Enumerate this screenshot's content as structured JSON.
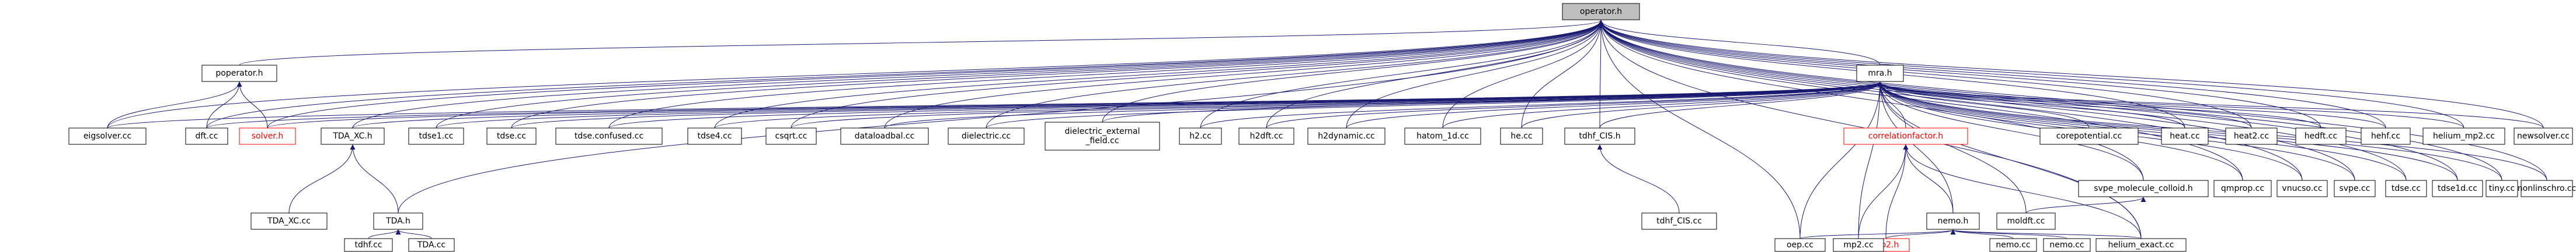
{
  "diagram": {
    "title": "",
    "edge_color": "#191970",
    "focus_fill": "#bfbfbf",
    "red_color": "#ff0000",
    "nodes": [
      {
        "id": "operator",
        "label": "operator.h",
        "style": "focus"
      },
      {
        "id": "pop",
        "label": "poperator.h"
      },
      {
        "id": "mra",
        "label": "mra.h"
      },
      {
        "id": "eig",
        "label": "eigsolver.cc"
      },
      {
        "id": "dft",
        "label": "dft.cc"
      },
      {
        "id": "solver",
        "label": "solver.h",
        "style": "red"
      },
      {
        "id": "tdaxch",
        "label": "TDA_XC.h"
      },
      {
        "id": "tdse1",
        "label": "tdse1.cc"
      },
      {
        "id": "tdse",
        "label": "tdse.cc"
      },
      {
        "id": "tdseconf",
        "label": "tdse.confused.cc"
      },
      {
        "id": "tdse4",
        "label": "tdse4.cc"
      },
      {
        "id": "csqrt",
        "label": "csqrt.cc"
      },
      {
        "id": "dataload",
        "label": "dataloadbal.cc"
      },
      {
        "id": "dielec",
        "label": "dielectric.cc"
      },
      {
        "id": "dielext",
        "label": "dielectric_external\n_field.cc"
      },
      {
        "id": "h2",
        "label": "h2.cc"
      },
      {
        "id": "h2dft",
        "label": "h2dft.cc"
      },
      {
        "id": "h2dyn",
        "label": "h2dynamic.cc"
      },
      {
        "id": "hatom",
        "label": "hatom_1d.cc"
      },
      {
        "id": "he",
        "label": "he.cc"
      },
      {
        "id": "tdhfh",
        "label": "tdhf_CIS.h"
      },
      {
        "id": "corr",
        "label": "correlationfactor.h",
        "style": "red"
      },
      {
        "id": "corepot",
        "label": "corepotential.cc"
      },
      {
        "id": "heat",
        "label": "heat.cc"
      },
      {
        "id": "heat2",
        "label": "heat2.cc"
      },
      {
        "id": "hedft",
        "label": "hedft.cc"
      },
      {
        "id": "hehf",
        "label": "hehf.cc"
      },
      {
        "id": "hemp2",
        "label": "helium_mp2.cc"
      },
      {
        "id": "newsolver",
        "label": "newsolver.cc"
      },
      {
        "id": "nonlin",
        "label": "nonlinschro.cc"
      },
      {
        "id": "svpe",
        "label": "svpe.cc"
      },
      {
        "id": "tdsecc",
        "label": "tdse.cc"
      },
      {
        "id": "tdse1d",
        "label": "tdse1d.cc"
      },
      {
        "id": "tiny",
        "label": "tiny.cc"
      },
      {
        "id": "vnucso",
        "label": "vnucso.cc"
      },
      {
        "id": "qmprop",
        "label": "qmprop.cc"
      },
      {
        "id": "svpe_col",
        "label": "svpe_molecule_colloid.h"
      },
      {
        "id": "tdaxccc",
        "label": "TDA_XC.cc"
      },
      {
        "id": "tdah",
        "label": "TDA.h"
      },
      {
        "id": "tdhfcis",
        "label": "tdhf_CIS.cc"
      },
      {
        "id": "nemoh",
        "label": "nemo.h"
      },
      {
        "id": "moldft",
        "label": "moldft.cc"
      },
      {
        "id": "tdhfcc",
        "label": "tdhf.cc"
      },
      {
        "id": "tdacc",
        "label": "TDA.cc"
      },
      {
        "id": "mp2h",
        "label": "mp2.h",
        "style": "red"
      },
      {
        "id": "nemocc1",
        "label": "nemo.cc"
      },
      {
        "id": "nemocc2",
        "label": "nemo.cc"
      },
      {
        "id": "heexact",
        "label": "helium_exact.cc"
      },
      {
        "id": "oep",
        "label": "oep.cc"
      },
      {
        "id": "mp2cc",
        "label": "mp2.cc"
      }
    ]
  }
}
